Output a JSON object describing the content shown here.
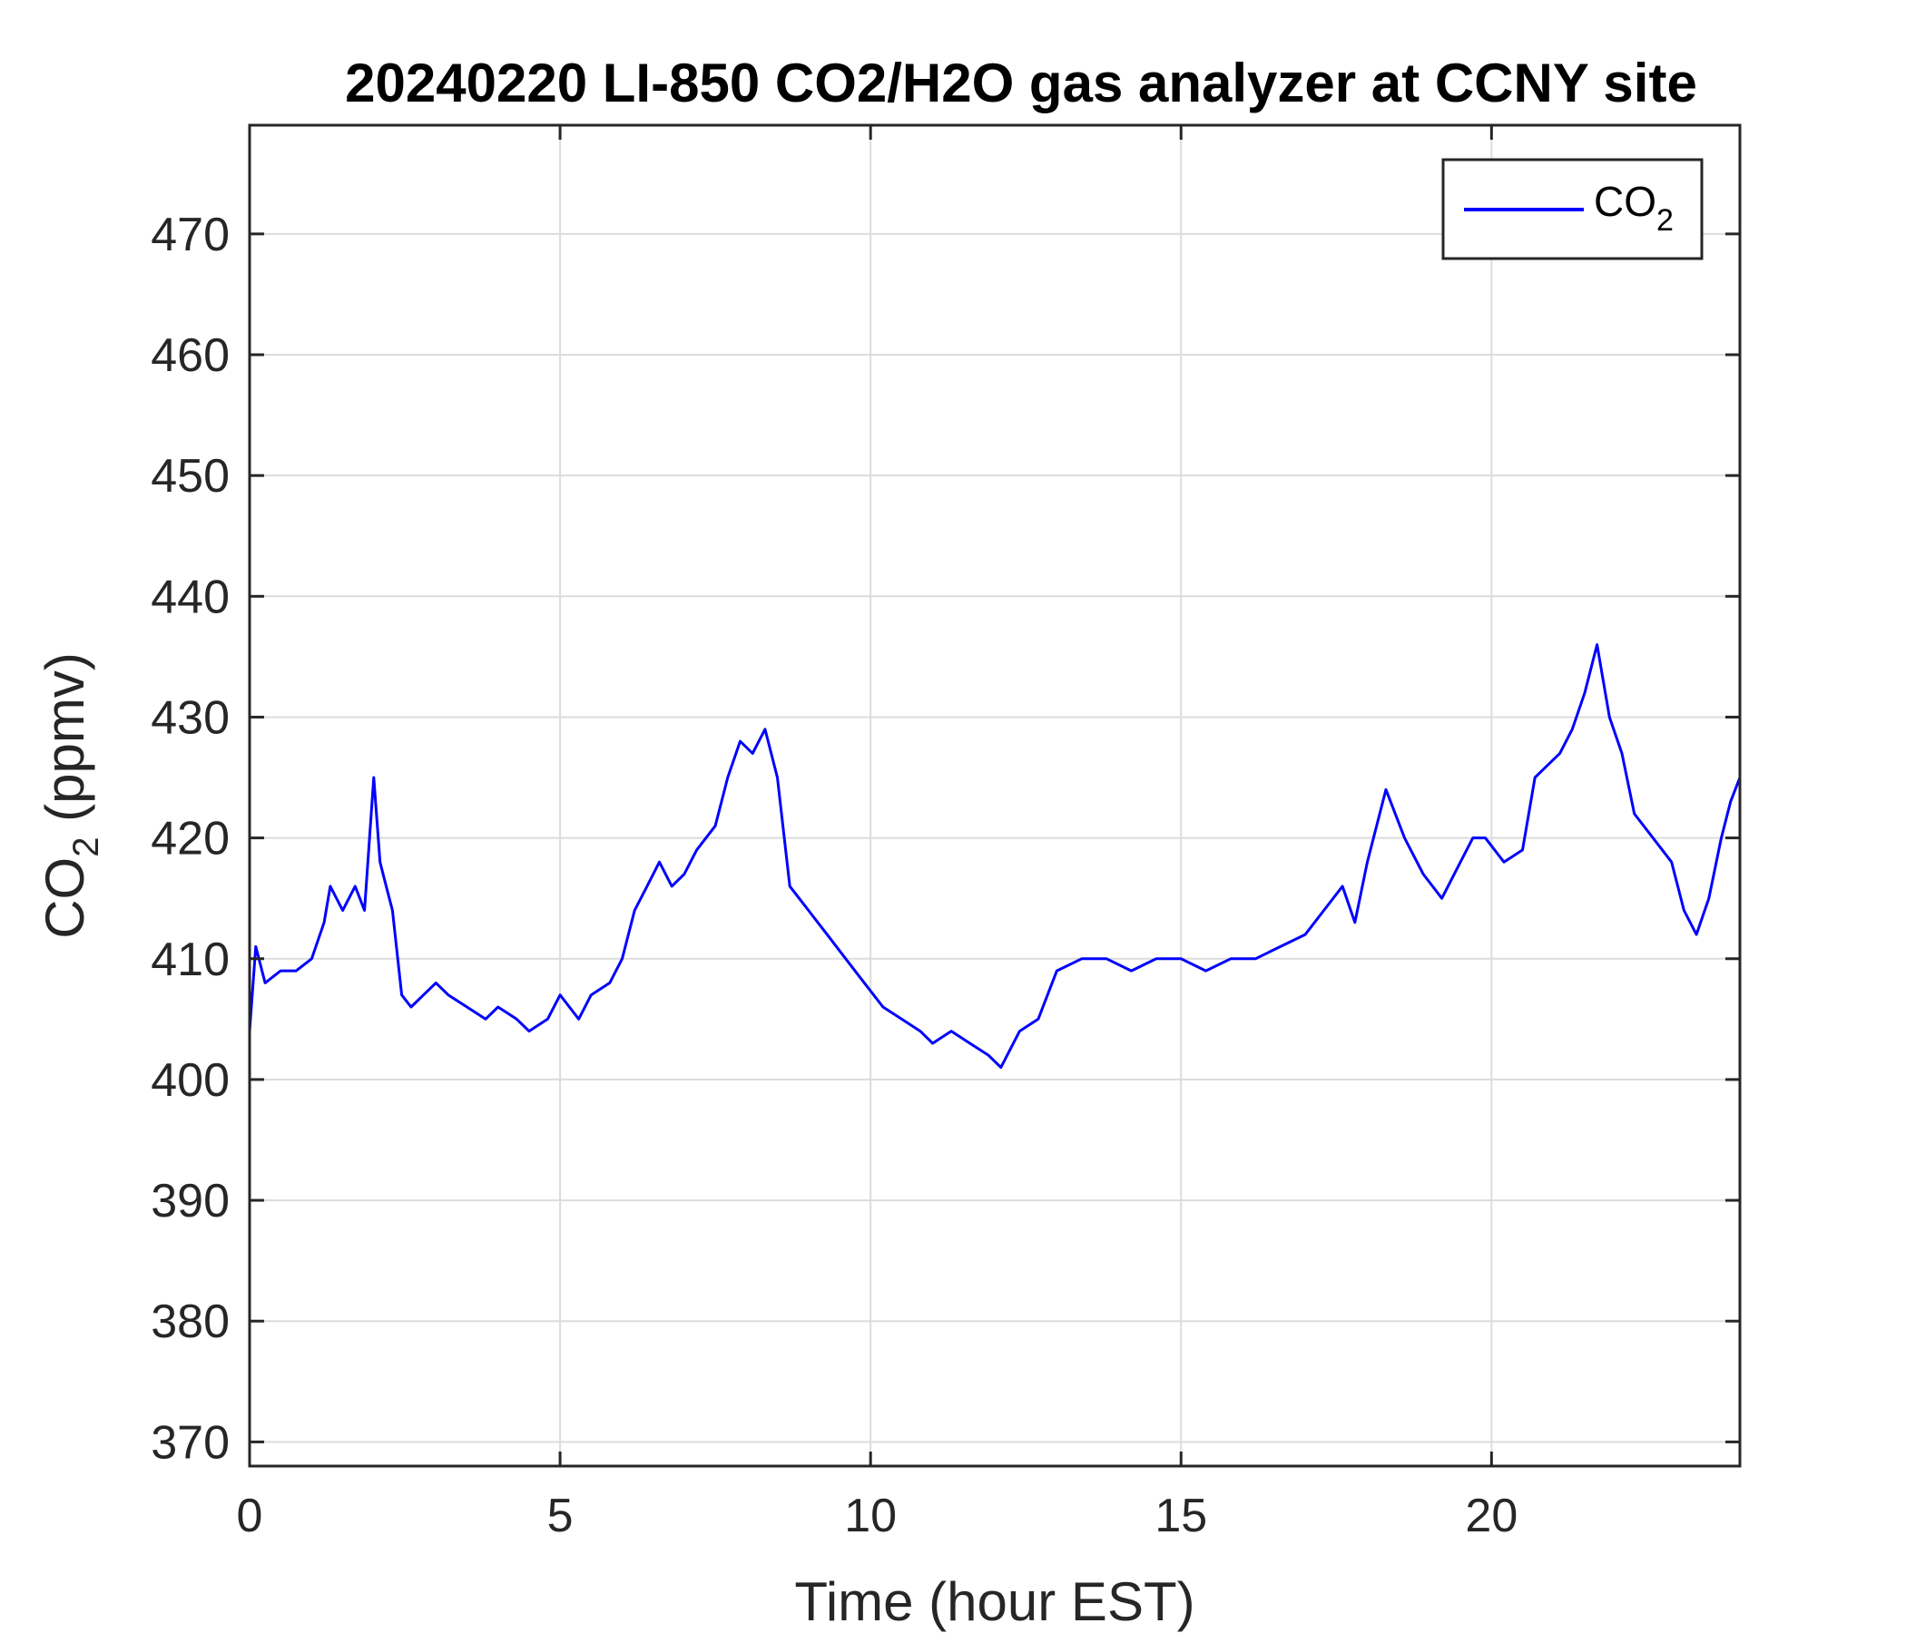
{
  "chart_data": {
    "type": "line",
    "title": "20240220 LI-850 CO2/H2O gas analyzer at CCNY site",
    "xlabel": "Time (hour EST)",
    "ylabel": {
      "base": "CO",
      "sub": "2",
      "rest": " (ppmv)"
    },
    "xlim": [
      0,
      24
    ],
    "ylim": [
      368,
      479
    ],
    "xticks": [
      0,
      5,
      10,
      15,
      20
    ],
    "yticks": [
      370,
      380,
      390,
      400,
      410,
      420,
      430,
      440,
      450,
      460,
      470
    ],
    "grid": true,
    "legend_position": "top-right",
    "colors": {
      "series": "#0000ff",
      "axis": "#262626",
      "grid": "#dcdcdc"
    },
    "series": [
      {
        "name": {
          "base": "CO",
          "sub": "2"
        },
        "x": [
          0,
          0.1,
          0.25,
          0.5,
          0.75,
          1.0,
          1.2,
          1.3,
          1.5,
          1.7,
          1.85,
          2.0,
          2.1,
          2.2,
          2.3,
          2.45,
          2.6,
          2.8,
          3.0,
          3.2,
          3.5,
          3.8,
          4.0,
          4.3,
          4.5,
          4.8,
          5.0,
          5.3,
          5.5,
          5.8,
          6.0,
          6.2,
          6.4,
          6.6,
          6.8,
          7.0,
          7.2,
          7.5,
          7.7,
          7.9,
          8.1,
          8.3,
          8.5,
          8.7,
          9.0,
          9.3,
          9.6,
          9.9,
          10.2,
          10.5,
          10.8,
          11.0,
          11.3,
          11.6,
          11.9,
          12.1,
          12.4,
          12.7,
          13.0,
          13.4,
          13.8,
          14.2,
          14.6,
          15.0,
          15.4,
          15.8,
          16.2,
          16.6,
          17.0,
          17.3,
          17.6,
          17.8,
          18.0,
          18.3,
          18.6,
          18.9,
          19.2,
          19.5,
          19.7,
          19.9,
          20.2,
          20.5,
          20.7,
          20.9,
          21.1,
          21.3,
          21.5,
          21.7,
          21.9,
          22.1,
          22.3,
          22.6,
          22.9,
          23.1,
          23.3,
          23.5,
          23.7,
          23.85,
          24.0
        ],
        "y": [
          404,
          411,
          408,
          409,
          409,
          410,
          413,
          416,
          414,
          416,
          414,
          425,
          418,
          416,
          414,
          407,
          406,
          407,
          408,
          407,
          406,
          405,
          406,
          405,
          404,
          405,
          407,
          405,
          407,
          408,
          410,
          414,
          416,
          418,
          416,
          417,
          419,
          421,
          425,
          428,
          427,
          429,
          425,
          416,
          414,
          412,
          410,
          408,
          406,
          405,
          404,
          403,
          404,
          403,
          402,
          401,
          404,
          405,
          409,
          410,
          410,
          409,
          410,
          410,
          409,
          410,
          410,
          411,
          412,
          414,
          416,
          413,
          418,
          424,
          420,
          417,
          415,
          418,
          420,
          420,
          418,
          419,
          425,
          426,
          427,
          429,
          432,
          436,
          430,
          427,
          422,
          420,
          418,
          414,
          412,
          415,
          420,
          423,
          425
        ]
      }
    ]
  }
}
